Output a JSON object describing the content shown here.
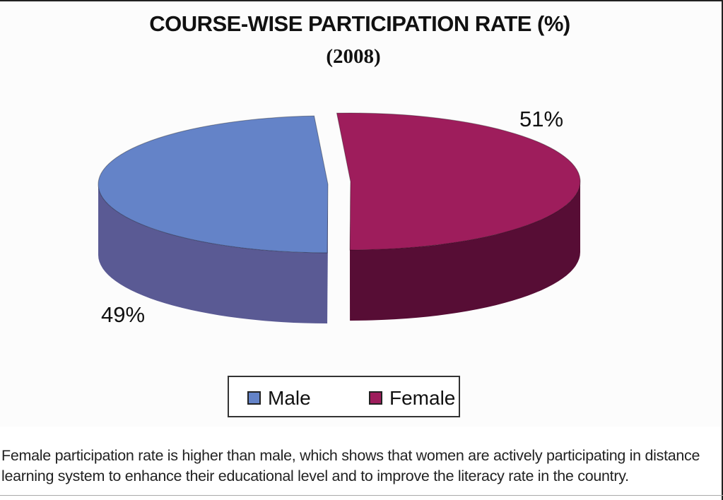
{
  "chart_data": {
    "type": "pie",
    "title": "COURSE-WISE PARTICIPATION RATE (%)",
    "subtitle": "(2008)",
    "series": [
      {
        "name": "Male",
        "value": 49,
        "label": "49%",
        "color_top": "#6483c8",
        "color_side": "#5a5a94"
      },
      {
        "name": "Female",
        "value": 51,
        "label": "51%",
        "color_top": "#9e1d5c",
        "color_side": "#570d35"
      }
    ],
    "legend_position": "bottom",
    "style": "3d-exploded"
  },
  "legend": {
    "male_label": "Male",
    "female_label": "Female"
  },
  "caption": "Female participation rate is higher than male, which shows that women are actively participating in distance learning system to enhance their educational level and to improve the literacy rate in the country."
}
